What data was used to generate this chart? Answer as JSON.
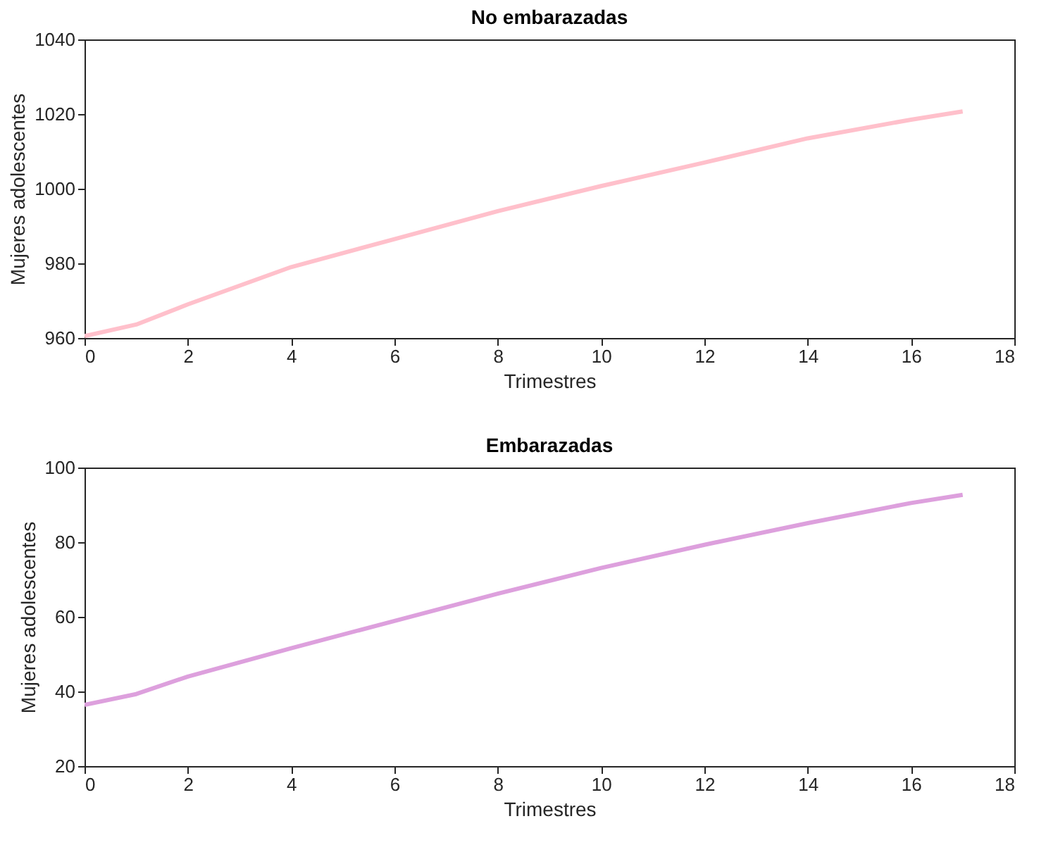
{
  "chart_data": [
    {
      "type": "line",
      "title": "No embarazadas",
      "xlabel": "Trimestres",
      "ylabel": "Mujeres adolescentes",
      "x": [
        0,
        1,
        2,
        4,
        6,
        8,
        10,
        12,
        14,
        16,
        17
      ],
      "series": [
        {
          "color": "#ffc0cb",
          "values": [
            960.5,
            963.6,
            969,
            979,
            986.5,
            994,
            1000.7,
            1007,
            1013.5,
            1018.5,
            1020.7
          ]
        }
      ],
      "xlim": [
        0,
        18
      ],
      "xticks": [
        0,
        2,
        4,
        6,
        8,
        10,
        12,
        14,
        16,
        18
      ],
      "ylim": [
        960,
        1040
      ],
      "yticks": [
        960,
        980,
        1000,
        1020,
        1040
      ],
      "grid": false
    },
    {
      "type": "line",
      "title": "Embarazadas",
      "xlabel": "Trimestres",
      "ylabel": "Mujeres adolescentes",
      "x": [
        0,
        1,
        2,
        4,
        6,
        8,
        10,
        12,
        14,
        16,
        17
      ],
      "series": [
        {
          "color": "#dda0dd",
          "values": [
            36.4,
            39.3,
            44,
            51.6,
            58.9,
            66.2,
            73.1,
            79.3,
            85.1,
            90.5,
            92.7
          ]
        }
      ],
      "xlim": [
        0,
        18
      ],
      "xticks": [
        0,
        2,
        4,
        6,
        8,
        10,
        12,
        14,
        16,
        18
      ],
      "ylim": [
        20,
        100
      ],
      "yticks": [
        20,
        40,
        60,
        80,
        100
      ],
      "grid": false
    }
  ]
}
